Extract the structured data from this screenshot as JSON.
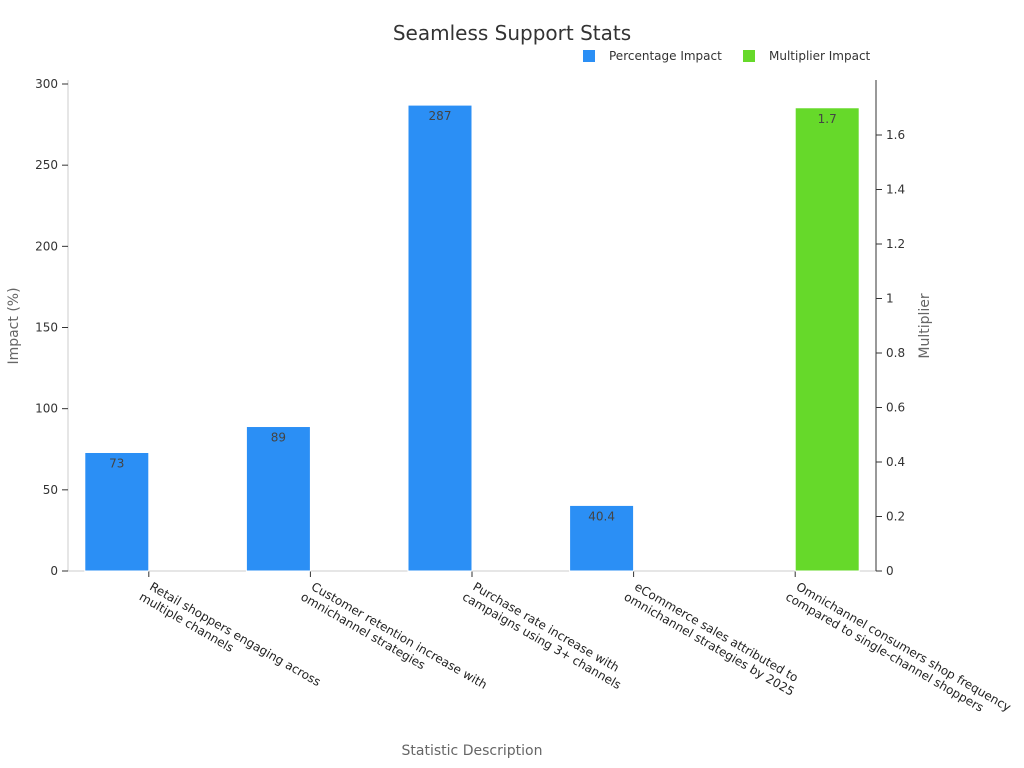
{
  "chart_data": {
    "type": "bar",
    "title": "Seamless Support Stats",
    "xlabel": "Statistic Description",
    "ylabel_left": "Impact (%)",
    "ylabel_right": "Multiplier",
    "legend_position": "top-right",
    "grid": false,
    "categories": [
      [
        "Retail shoppers engaging across",
        "multiple channels"
      ],
      [
        "Customer retention increase with",
        "omnichannel strategies"
      ],
      [
        "Purchase rate increase with",
        "campaigns using 3+ channels"
      ],
      [
        "eCommerce sales attributed to",
        "omnichannel strategies by 2025"
      ],
      [
        "Omnichannel consumers shop frequency",
        "compared to single-channel shoppers"
      ]
    ],
    "series": [
      {
        "name": "Percentage Impact",
        "axis": "left",
        "color": "#2b8ff5",
        "values": [
          73,
          89,
          287,
          40.4,
          null
        ],
        "labels": [
          "73",
          "89",
          "287",
          "40.4",
          null
        ]
      },
      {
        "name": "Multiplier Impact",
        "axis": "right",
        "color": "#66d92a",
        "values": [
          null,
          null,
          null,
          null,
          1.7
        ],
        "labels": [
          null,
          null,
          null,
          null,
          "1.7"
        ]
      }
    ],
    "ylim_left": [
      0,
      300
    ],
    "yticks_left": [
      0,
      50,
      100,
      150,
      200,
      250,
      300
    ],
    "ylim_right": [
      0,
      1.7872
    ],
    "yticks_right": [
      "0",
      "0.2",
      "0.4",
      "0.6",
      "0.8",
      "1",
      "1.2",
      "1.4",
      "1.6"
    ]
  }
}
